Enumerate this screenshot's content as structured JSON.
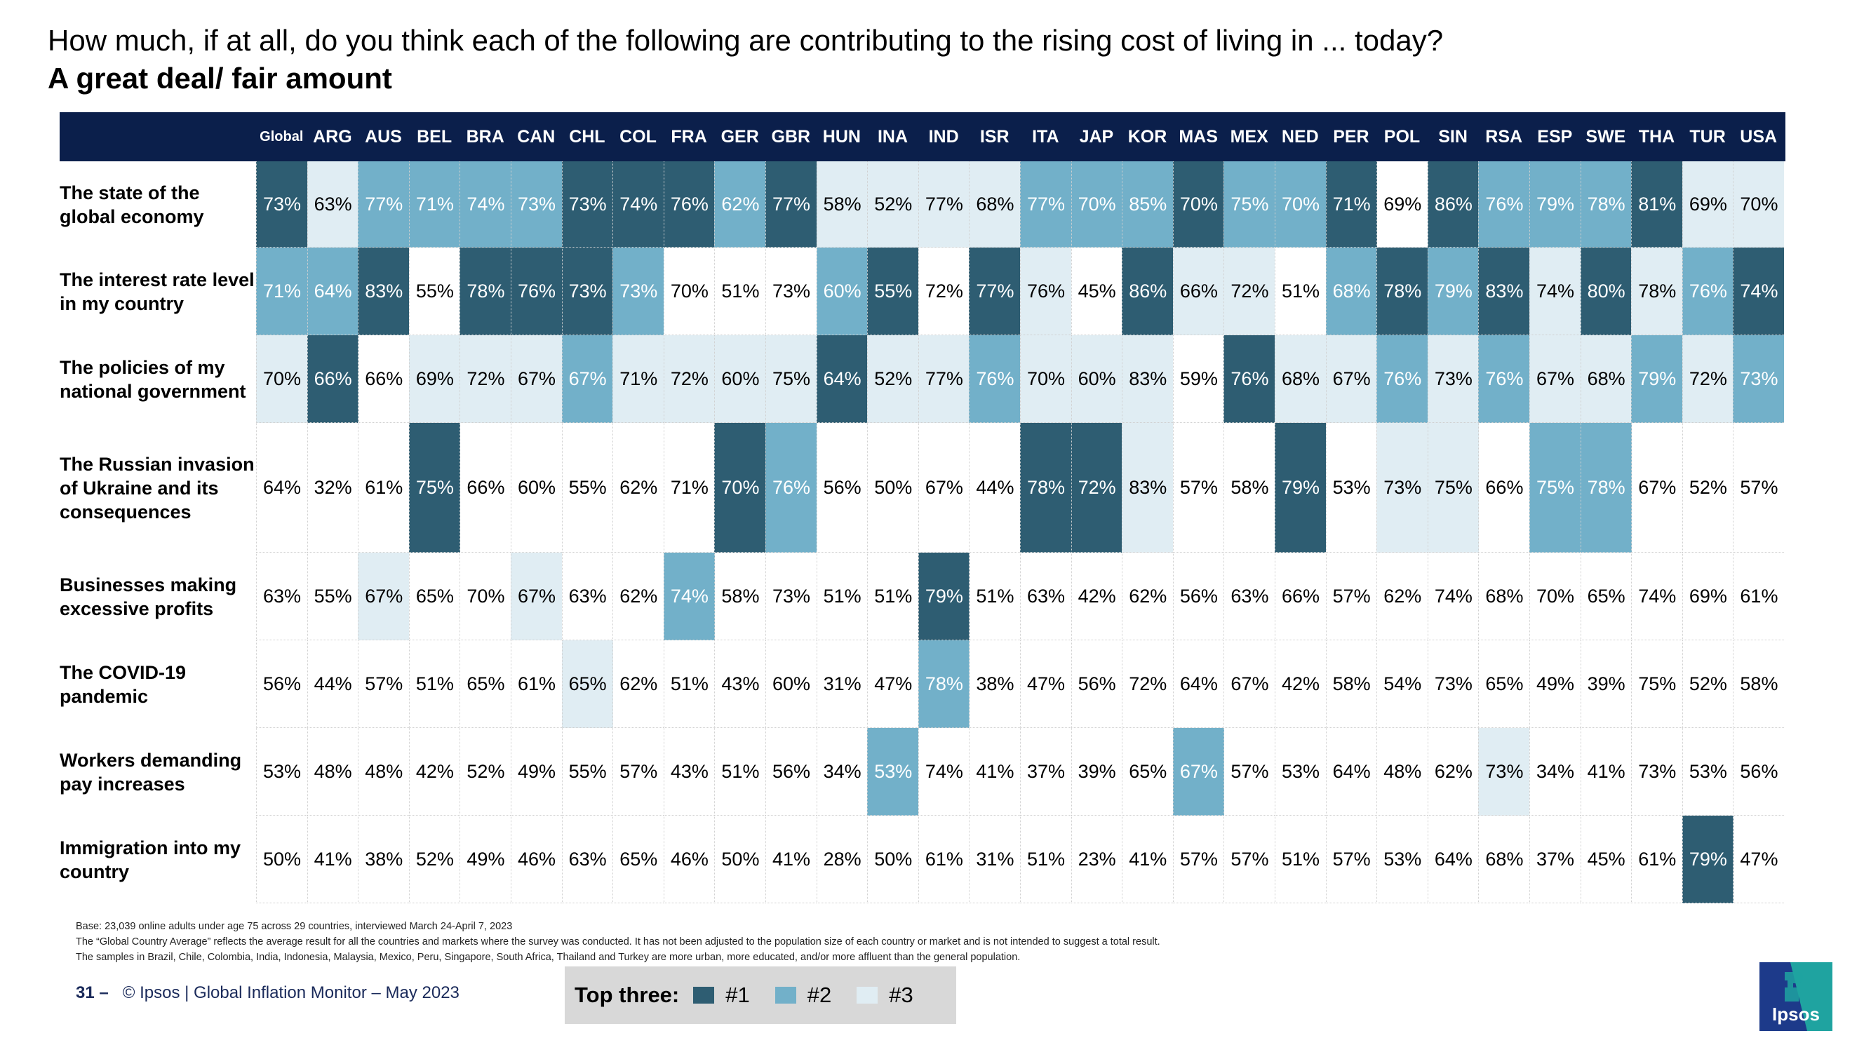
{
  "title": "How much, if at all, do you think each of the following are contributing to the rising cost of living in ... today?",
  "subtitle": "A great deal/ fair amount",
  "columns": [
    "Global",
    "ARG",
    "AUS",
    "BEL",
    "BRA",
    "CAN",
    "CHL",
    "COL",
    "FRA",
    "GER",
    "GBR",
    "HUN",
    "INA",
    "IND",
    "ISR",
    "ITA",
    "JAP",
    "KOR",
    "MAS",
    "MEX",
    "NED",
    "PER",
    "POL",
    "SIN",
    "RSA",
    "ESP",
    "SWE",
    "THA",
    "TUR",
    "USA"
  ],
  "chart_data": {
    "type": "table",
    "title": "How much, if at all, do you think each of the following are contributing to the rising cost of living in ... today?",
    "subtitle": "A great deal/ fair amount",
    "unit": "%",
    "rows": [
      {
        "label": "The state of the global economy",
        "values": [
          73,
          63,
          77,
          71,
          74,
          73,
          73,
          74,
          76,
          62,
          77,
          58,
          52,
          77,
          68,
          77,
          70,
          85,
          70,
          75,
          70,
          71,
          69,
          86,
          76,
          79,
          78,
          81,
          69,
          70
        ],
        "ranks": [
          1,
          3,
          2,
          2,
          2,
          2,
          1,
          1,
          1,
          2,
          1,
          3,
          3,
          3,
          3,
          2,
          2,
          2,
          1,
          2,
          2,
          1,
          0,
          1,
          2,
          2,
          2,
          1,
          3,
          3
        ]
      },
      {
        "label": "The interest rate level in my country",
        "values": [
          71,
          64,
          83,
          55,
          78,
          76,
          73,
          73,
          70,
          51,
          73,
          60,
          55,
          72,
          77,
          76,
          45,
          86,
          66,
          72,
          51,
          68,
          78,
          79,
          83,
          74,
          80,
          78,
          76,
          74
        ],
        "ranks": [
          2,
          2,
          1,
          0,
          1,
          1,
          1,
          2,
          0,
          0,
          0,
          2,
          1,
          0,
          1,
          3,
          0,
          1,
          3,
          3,
          0,
          2,
          1,
          2,
          1,
          3,
          1,
          3,
          2,
          1
        ]
      },
      {
        "label": "The policies of my national government",
        "values": [
          70,
          66,
          66,
          69,
          72,
          67,
          67,
          71,
          72,
          60,
          75,
          64,
          52,
          77,
          76,
          70,
          60,
          83,
          59,
          76,
          68,
          67,
          76,
          73,
          76,
          67,
          68,
          79,
          72,
          73
        ],
        "ranks": [
          3,
          1,
          0,
          3,
          3,
          3,
          2,
          3,
          3,
          3,
          3,
          1,
          3,
          3,
          2,
          3,
          3,
          3,
          0,
          1,
          3,
          3,
          2,
          3,
          2,
          3,
          3,
          2,
          3,
          2
        ]
      },
      {
        "label": "The Russian invasion of Ukraine and its consequences",
        "values": [
          64,
          32,
          61,
          75,
          66,
          60,
          55,
          62,
          71,
          70,
          76,
          56,
          50,
          67,
          44,
          78,
          72,
          83,
          57,
          58,
          79,
          53,
          73,
          75,
          66,
          75,
          78,
          67,
          52,
          57
        ],
        "ranks": [
          0,
          0,
          0,
          1,
          0,
          0,
          0,
          0,
          0,
          1,
          2,
          0,
          0,
          0,
          0,
          1,
          1,
          3,
          0,
          0,
          1,
          0,
          3,
          3,
          0,
          2,
          2,
          0,
          0,
          0
        ]
      },
      {
        "label": "Businesses making excessive profits",
        "values": [
          63,
          55,
          67,
          65,
          70,
          67,
          63,
          62,
          74,
          58,
          73,
          51,
          51,
          79,
          51,
          63,
          42,
          62,
          56,
          63,
          66,
          57,
          62,
          74,
          68,
          70,
          65,
          74,
          69,
          61
        ],
        "ranks": [
          0,
          0,
          3,
          0,
          0,
          3,
          0,
          0,
          2,
          0,
          0,
          0,
          0,
          1,
          0,
          0,
          0,
          0,
          0,
          0,
          0,
          0,
          0,
          0,
          0,
          0,
          0,
          0,
          0,
          0
        ]
      },
      {
        "label": "The COVID-19 pandemic",
        "values": [
          56,
          44,
          57,
          51,
          65,
          61,
          65,
          62,
          51,
          43,
          60,
          31,
          47,
          78,
          38,
          47,
          56,
          72,
          64,
          67,
          42,
          58,
          54,
          73,
          65,
          49,
          39,
          75,
          52,
          58
        ],
        "ranks": [
          0,
          0,
          0,
          0,
          0,
          0,
          3,
          0,
          0,
          0,
          0,
          0,
          0,
          2,
          0,
          0,
          0,
          0,
          0,
          0,
          0,
          0,
          0,
          0,
          0,
          0,
          0,
          0,
          0,
          0
        ]
      },
      {
        "label": "Workers demanding pay increases",
        "values": [
          53,
          48,
          48,
          42,
          52,
          49,
          55,
          57,
          43,
          51,
          56,
          34,
          53,
          74,
          41,
          37,
          39,
          65,
          67,
          57,
          53,
          64,
          48,
          62,
          73,
          34,
          41,
          73,
          53,
          56
        ],
        "ranks": [
          0,
          0,
          0,
          0,
          0,
          0,
          0,
          0,
          0,
          0,
          0,
          0,
          2,
          0,
          0,
          0,
          0,
          0,
          2,
          0,
          0,
          0,
          0,
          0,
          3,
          0,
          0,
          0,
          0,
          0
        ]
      },
      {
        "label": "Immigration into my country",
        "values": [
          50,
          41,
          38,
          52,
          49,
          46,
          63,
          65,
          46,
          50,
          41,
          28,
          50,
          61,
          31,
          51,
          23,
          41,
          57,
          57,
          51,
          57,
          53,
          64,
          68,
          37,
          45,
          61,
          79,
          47
        ],
        "ranks": [
          0,
          0,
          0,
          0,
          0,
          0,
          0,
          0,
          0,
          0,
          0,
          0,
          0,
          0,
          0,
          0,
          0,
          0,
          0,
          0,
          0,
          0,
          0,
          0,
          0,
          0,
          0,
          0,
          1,
          0
        ]
      }
    ]
  },
  "footnotes": [
    "Base: 23,039 online adults under age 75 across 29 countries, interviewed March 24-April 7, 2023",
    "The “Global Country Average” reflects the average result for all the countries and markets where the survey was conducted. It has not been adjusted to the population size of each country or market and is not intended to suggest a total result.",
    "The samples in Brazil, Chile, Colombia, India, Indonesia, Malaysia, Mexico, Peru, Singapore, South Africa, Thailand and Turkey are more urban, more educated, and/or more affluent than the general population."
  ],
  "footer": {
    "page_number": "31 –",
    "source": "© Ipsos | Global Inflation Monitor – May 2023"
  },
  "legend": {
    "title": "Top three:",
    "items": [
      {
        "label": "#1",
        "color": "#2e5d72"
      },
      {
        "label": "#2",
        "color": "#72b0c9"
      },
      {
        "label": "#3",
        "color": "#e0edf3"
      }
    ]
  },
  "logo_text": "Ipsos"
}
